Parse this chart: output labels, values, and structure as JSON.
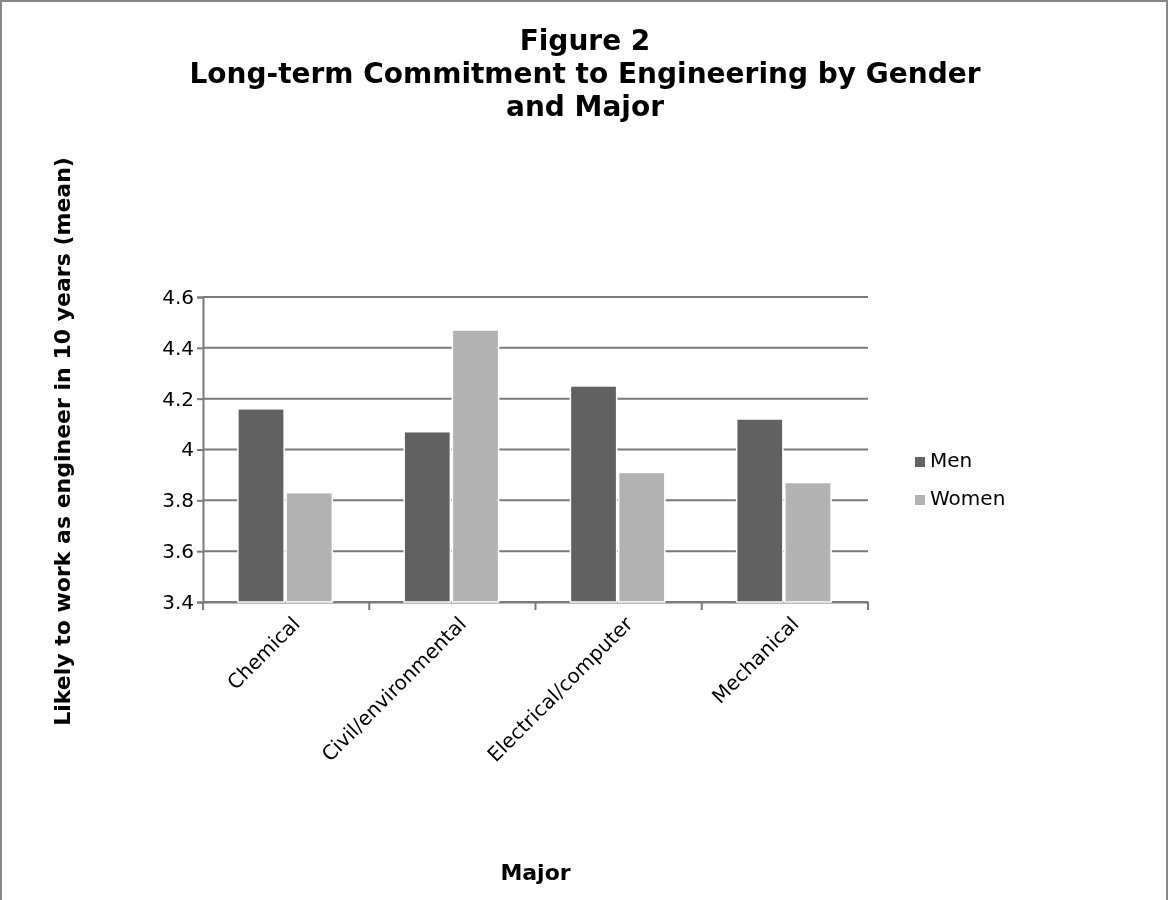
{
  "chart_data": {
    "type": "bar",
    "title": "Figure 2\nLong-term Commitment to Engineering by Gender\nand Major",
    "xlabel": "Major",
    "ylabel": "Likely to work as engineer in 10 years (mean)",
    "categories": [
      "Chemical",
      "Civil/environmental",
      "Electrical/computer",
      "Mechanical"
    ],
    "series": [
      {
        "name": "Men",
        "color": "#616161",
        "values": [
          4.16,
          4.07,
          4.25,
          4.12
        ]
      },
      {
        "name": "Women",
        "color": "#b2b2b2",
        "values": [
          3.83,
          4.47,
          3.91,
          3.87
        ]
      }
    ],
    "ylim": [
      3.4,
      4.6
    ],
    "yticks": [
      3.4,
      3.6,
      3.8,
      4,
      4.2,
      4.4,
      4.6
    ],
    "grid": "y",
    "legend": "right"
  }
}
